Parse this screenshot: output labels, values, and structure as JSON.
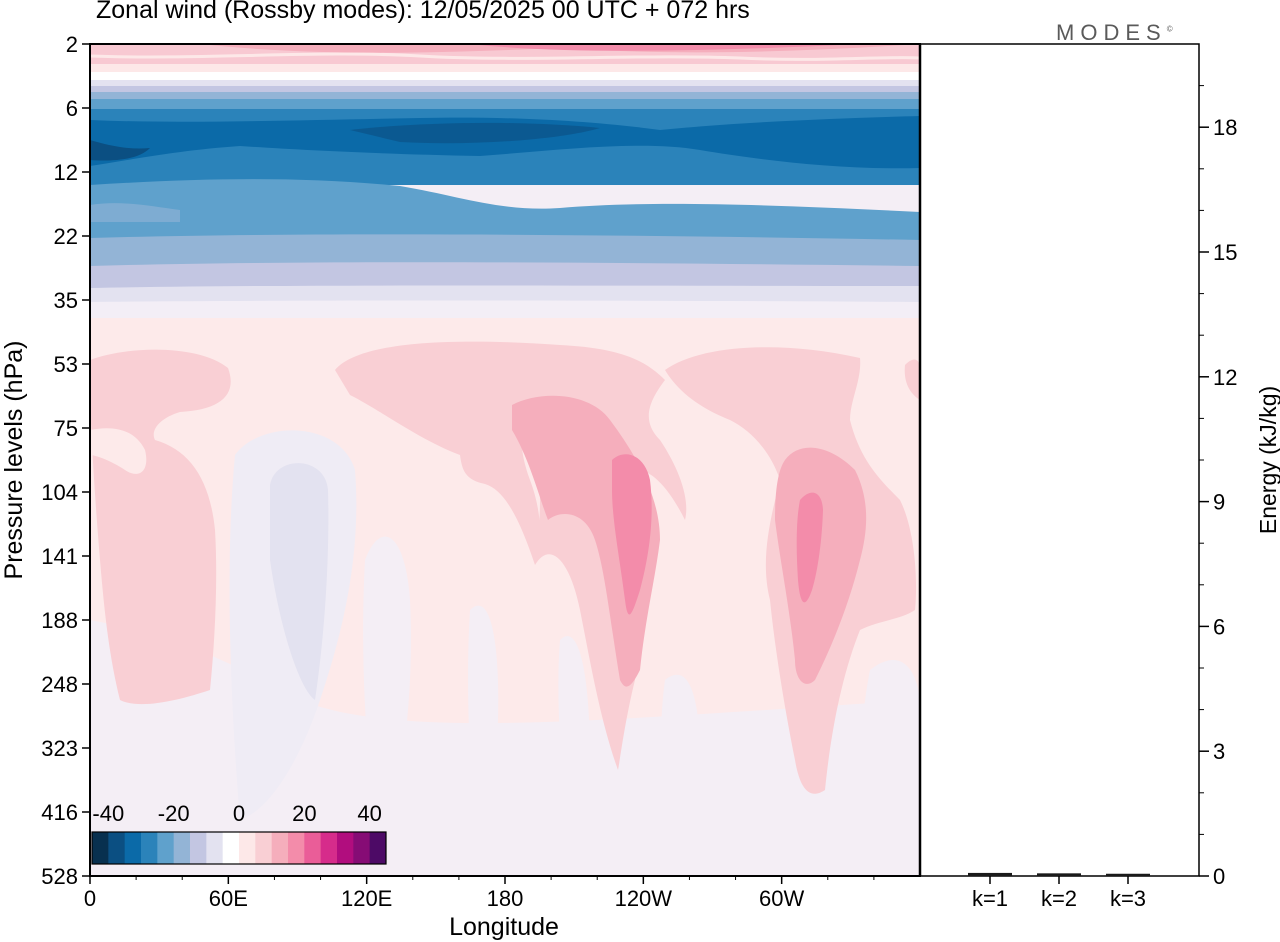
{
  "title": "Zonal wind (Rossby modes):  12/05/2025  00 UTC  + 072 hrs",
  "logo": {
    "text": "MODES",
    "mark": "©"
  },
  "colors": {
    "scale": [
      "#08304f",
      "#0b4f82",
      "#0b6aa8",
      "#2b83ba",
      "#5fa1cc",
      "#93b4d6",
      "#c3c6e2",
      "#e3e2f0",
      "#ffffff",
      "#fde8e8",
      "#f9cfd4",
      "#f5aebc",
      "#f38caa",
      "#ea5d98",
      "#d62c8b",
      "#b10d7e",
      "#860c75",
      "#4d0a66"
    ]
  },
  "chart_data": [
    {
      "type": "heatmap",
      "title": "Zonal wind (Rossby modes):  12/05/2025  00 UTC  + 072 hrs",
      "xlabel": "Longitude",
      "ylabel": "Pressure levels (hPa)",
      "x_ticks": [
        "0",
        "60E",
        "120E",
        "180",
        "120W",
        "60W"
      ],
      "y_ticks": [
        "2",
        "6",
        "12",
        "22",
        "35",
        "53",
        "75",
        "104",
        "141",
        "188",
        "248",
        "323",
        "416",
        "528"
      ],
      "colorbar": {
        "ticks": [
          "-40",
          "-20",
          "0",
          "20",
          "40"
        ],
        "range": [
          -45,
          45
        ],
        "step": 5
      },
      "bands": [
        {
          "level": "2",
          "value": 12
        },
        {
          "level": "6",
          "value": -22
        },
        {
          "level": "12",
          "value": -28
        },
        {
          "level": "22",
          "value": -22
        },
        {
          "level": "35",
          "value": -3
        },
        {
          "level": "53",
          "value": 3
        },
        {
          "level": "104",
          "value": 3
        },
        {
          "level": "248",
          "value": 1
        },
        {
          "level": "528",
          "value": 0
        }
      ],
      "features": [
        {
          "level": "104",
          "longitude": "100E",
          "value": -4
        },
        {
          "level": "104",
          "longitude": "110W",
          "value": 16
        },
        {
          "level": "141",
          "longitude": "50W",
          "value": 16
        },
        {
          "level": "75",
          "longitude": "130W",
          "value": 8
        },
        {
          "level": "2",
          "longitude": "120W",
          "value": 18
        }
      ]
    },
    {
      "type": "bar",
      "ylabel": "Energy (kJ/kg)",
      "categories": [
        "k=1",
        "k=2",
        "k=3"
      ],
      "values": [
        0.05,
        0.04,
        0.03
      ],
      "ylim": [
        0,
        20
      ],
      "y_ticks": [
        "0",
        "3",
        "6",
        "9",
        "12",
        "15",
        "18"
      ]
    }
  ]
}
